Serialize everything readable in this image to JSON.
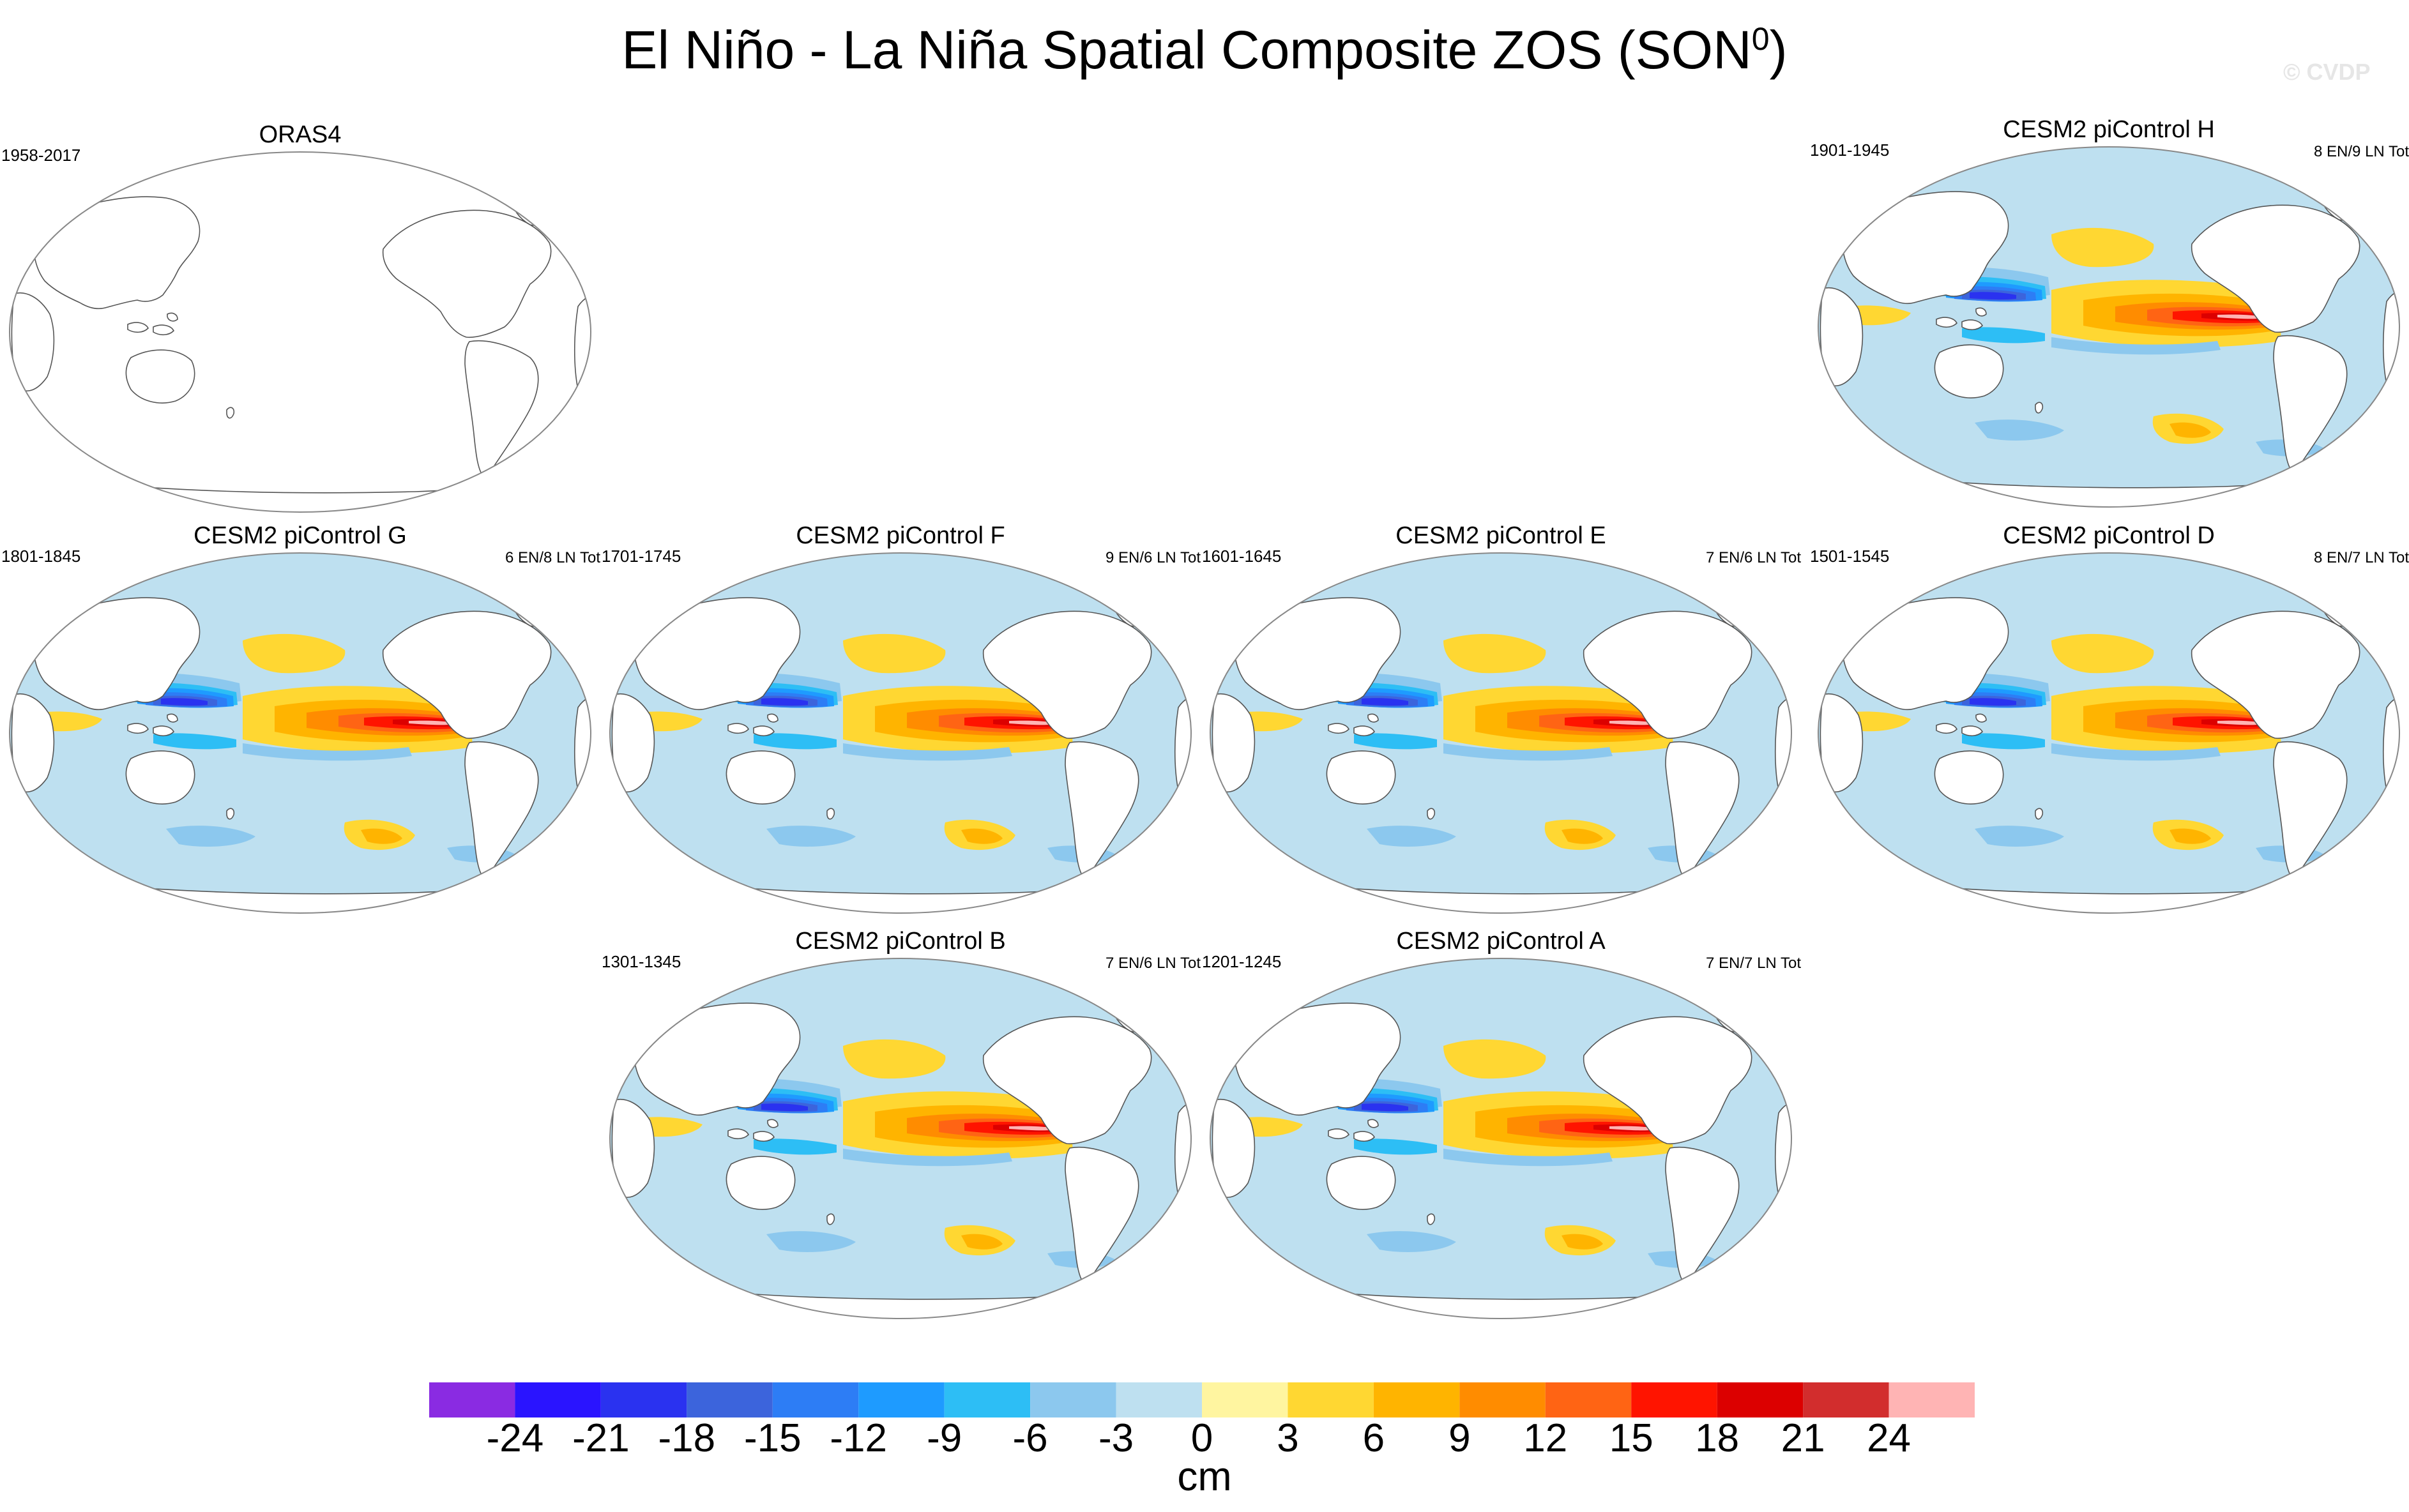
{
  "title": "El Niño - La Niña Spatial Composite ZOS (SON",
  "title_superscript": "0",
  "title_suffix": ")",
  "watermark": "© CVDP",
  "panels": [
    {
      "title": "ORAS4",
      "years": "1958-2017",
      "count": "",
      "field": "none"
    },
    {
      "title": "CESM2 piControl H",
      "years": "1901-1945",
      "count": "8 EN/9 LN Tot",
      "field": "composite"
    },
    {
      "title": "CESM2 piControl G",
      "years": "1801-1845",
      "count": "6 EN/8 LN Tot",
      "field": "composite"
    },
    {
      "title": "CESM2 piControl F",
      "years": "1701-1745",
      "count": "9 EN/6 LN Tot",
      "field": "composite"
    },
    {
      "title": "CESM2 piControl E",
      "years": "1601-1645",
      "count": "7 EN/6 LN Tot",
      "field": "composite"
    },
    {
      "title": "CESM2 piControl D",
      "years": "1501-1545",
      "count": "8 EN/7 LN Tot",
      "field": "composite"
    },
    {
      "title": "CESM2 piControl B",
      "years": "1301-1345",
      "count": "7 EN/6 LN Tot",
      "field": "composite"
    },
    {
      "title": "CESM2 piControl A",
      "years": "1201-1245",
      "count": "7 EN/7 LN Tot",
      "field": "composite"
    }
  ],
  "colorbar": {
    "unit": "cm",
    "tick_labels": [
      "-24",
      "-21",
      "-18",
      "-15",
      "-12",
      "-9",
      "-6",
      "-3",
      "0",
      "3",
      "6",
      "9",
      "12",
      "15",
      "18",
      "21",
      "24"
    ],
    "colors": [
      "#8a2be2",
      "#2a14ff",
      "#2a32f0",
      "#3c64dc",
      "#2d7df5",
      "#1e9bff",
      "#2dbef5",
      "#8cc8ee",
      "#bee0f0",
      "#fff5a0",
      "#ffd732",
      "#ffb400",
      "#ff8c00",
      "#ff6414",
      "#ff1400",
      "#dc0000",
      "#d22d2d",
      "#ffb4b4"
    ]
  }
}
